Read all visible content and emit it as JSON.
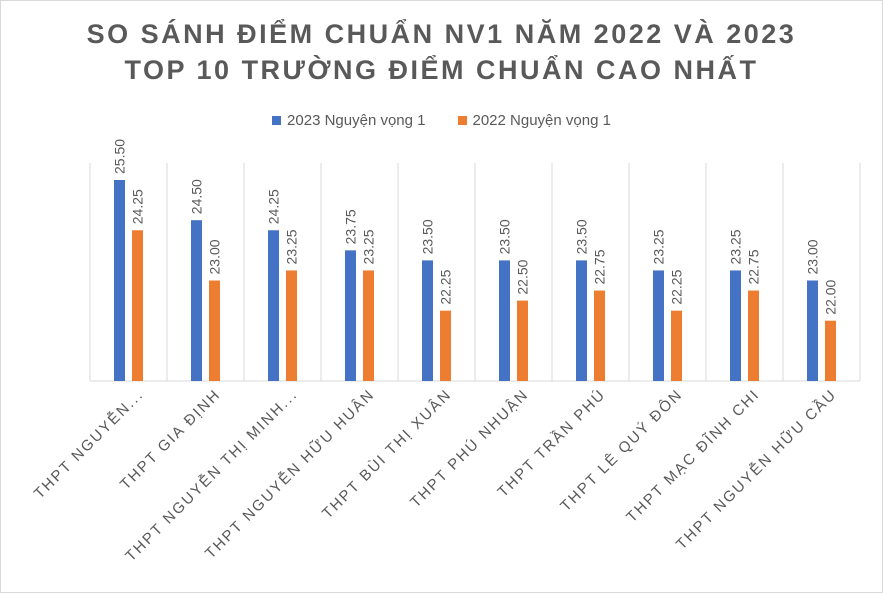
{
  "chart_data": {
    "type": "bar",
    "title_line1": "SO SÁNH ĐIỂM CHUẨN NV1 NĂM 2022 VÀ 2023",
    "title_line2": "TOP 10 TRƯỜNG ĐIỂM CHUẨN CAO NHẤT",
    "categories": [
      "THPT NGUYỄN...",
      "THPT GIA ĐỊNH",
      "THPT NGUYỄN THỊ MINH...",
      "THPT NGUYỄN HỮU HUÂN",
      "THPT BÙI THỊ XUÂN",
      "THPT PHÚ NHUẬN",
      "THPT TRẦN PHÚ",
      "THPT LÊ QUÝ ĐÔN",
      "THPT MẠC ĐĨNH CHI",
      "THPT NGUYỄN HỮU CẦU"
    ],
    "series": [
      {
        "name": "2023 Nguyện vọng 1",
        "color": "#4472c4",
        "values": [
          25.5,
          24.5,
          24.25,
          23.75,
          23.5,
          23.5,
          23.5,
          23.25,
          23.25,
          23.0
        ]
      },
      {
        "name": "2022 Nguyện vọng 1",
        "color": "#ed7d31",
        "values": [
          24.25,
          23.0,
          23.25,
          23.25,
          22.25,
          22.5,
          22.75,
          22.25,
          22.75,
          22.0
        ]
      }
    ],
    "ylim": [
      20.5,
      25.5
    ],
    "legend": "top",
    "grid": false,
    "data_labels": true
  }
}
